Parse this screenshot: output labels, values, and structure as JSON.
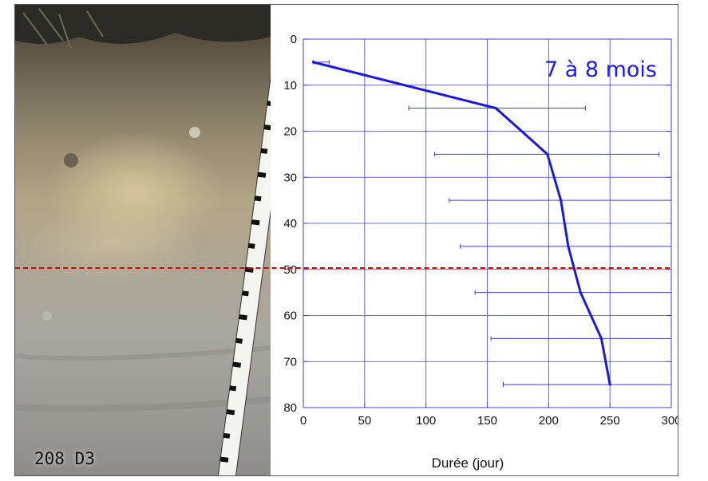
{
  "photo": {
    "label": "208 D3"
  },
  "chart_data": {
    "type": "line",
    "annotation": "7 à 8 mois",
    "xlabel": "Durée (jour)",
    "ylabel": "",
    "xlim": [
      0,
      300
    ],
    "ylim": [
      80,
      0
    ],
    "x_ticks": [
      0,
      50,
      100,
      150,
      200,
      250,
      300
    ],
    "y_ticks": [
      0,
      10,
      20,
      30,
      40,
      50,
      60,
      70,
      80
    ],
    "grid": true,
    "series": [
      {
        "values": [
          {
            "x": 8,
            "y": 5
          },
          {
            "x": 157,
            "y": 15
          },
          {
            "x": 199,
            "y": 25
          },
          {
            "x": 210,
            "y": 35
          },
          {
            "x": 216,
            "y": 45
          },
          {
            "x": 226,
            "y": 55
          },
          {
            "x": 243,
            "y": 65
          },
          {
            "x": 250,
            "y": 75
          }
        ],
        "x_error_ranges": [
          [
            8,
            21
          ],
          [
            86,
            230
          ],
          [
            107,
            290
          ],
          [
            119,
            300
          ],
          [
            128,
            300
          ],
          [
            140,
            300
          ],
          [
            153,
            300
          ],
          [
            163,
            300
          ]
        ]
      }
    ],
    "reference_line": {
      "y": 50,
      "style": "dashed",
      "color": "#e00000"
    },
    "colors": {
      "series": "#1a1adc",
      "grid": "#3f3fd8",
      "annotation": "#1a1aff",
      "reference": "#e00000"
    }
  }
}
